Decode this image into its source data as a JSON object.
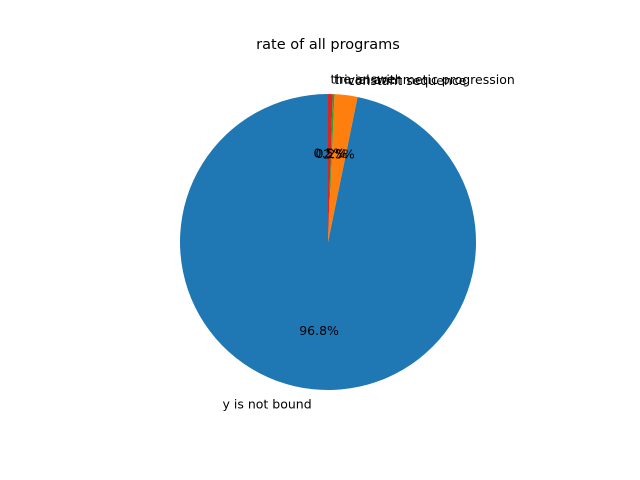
{
  "chart_data": {
    "type": "pie",
    "title": "rate of all programs",
    "start_angle_deg": 90,
    "direction": "counterclockwise",
    "slices": [
      {
        "label": "y is not bound",
        "value": 96.8,
        "pct_label": "96.8%",
        "color": "#1f77b4"
      },
      {
        "label": "constant sequence",
        "value": 2.5,
        "pct_label": "2.5%",
        "color": "#ff7f0e"
      },
      {
        "label": "trivial arithmetic progression",
        "value": 0.2,
        "pct_label": "0.2%",
        "color": "#2ca02c"
      },
      {
        "label": "the answer",
        "value": 0.5,
        "pct_label": "0.5%",
        "color": "#d62728"
      }
    ]
  }
}
